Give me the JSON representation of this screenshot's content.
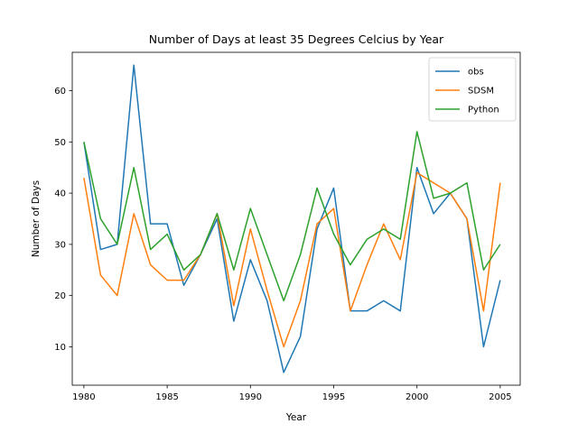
{
  "chart_data": {
    "type": "line",
    "title": "Number of Days at least 35 Degrees Celcius by Year",
    "xlabel": "Year",
    "ylabel": "Number of Days",
    "xlim": [
      1979.3,
      2006.2
    ],
    "ylim": [
      2.5,
      67.5
    ],
    "xticks": [
      1980,
      1985,
      1990,
      1995,
      2000,
      2005
    ],
    "yticks": [
      10,
      20,
      30,
      40,
      50,
      60
    ],
    "grid": false,
    "legend_position": "top-right",
    "x": [
      1980,
      1981,
      1982,
      1983,
      1984,
      1985,
      1986,
      1987,
      1988,
      1989,
      1990,
      1991,
      1992,
      1993,
      1994,
      1995,
      1996,
      1997,
      1998,
      1999,
      2000,
      2001,
      2002,
      2003,
      2004,
      2005
    ],
    "series": [
      {
        "name": "obs",
        "color": "#1f77b4",
        "values": [
          50,
          29,
          30,
          65,
          34,
          34,
          22,
          28,
          35,
          15,
          27,
          19,
          5,
          12,
          33,
          41,
          17,
          17,
          19,
          17,
          45,
          36,
          40,
          35,
          10,
          23
        ]
      },
      {
        "name": "SDSM",
        "color": "#ff7f0e",
        "values": [
          43,
          24,
          20,
          36,
          26,
          23,
          23,
          28,
          36,
          18,
          33,
          21,
          10,
          19,
          34,
          37,
          17,
          26,
          34,
          27,
          44,
          42,
          40,
          35,
          17,
          42
        ]
      },
      {
        "name": "Python",
        "color": "#2ca02c",
        "values": [
          50,
          35,
          30,
          45,
          29,
          32,
          25,
          28,
          36,
          25,
          37,
          28,
          19,
          28,
          41,
          32,
          26,
          31,
          33,
          31,
          52,
          39,
          40,
          42,
          25,
          30
        ]
      }
    ]
  }
}
